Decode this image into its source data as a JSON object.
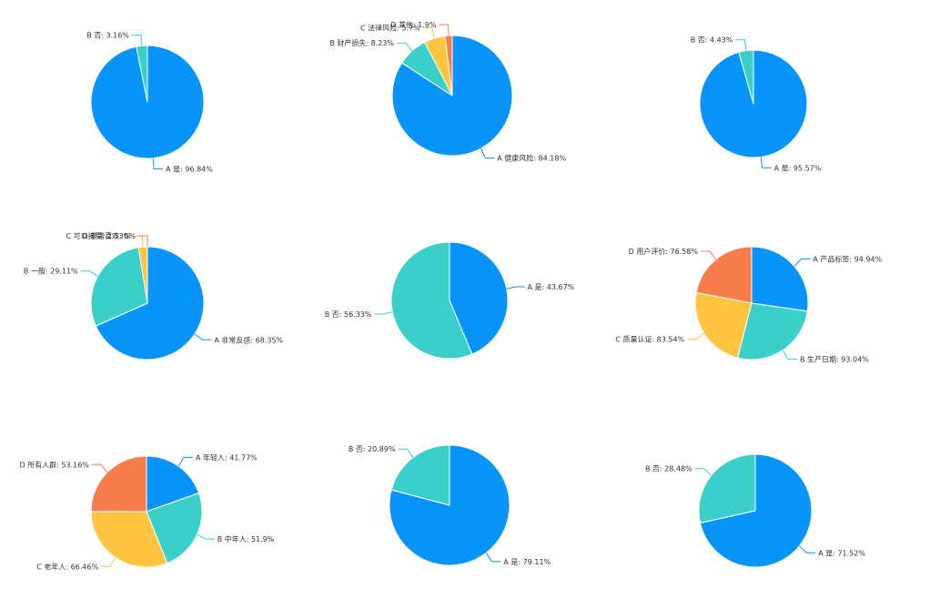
{
  "colors": [
    "#0894fb",
    "#3acfc8",
    "#ffc541",
    "#f97d4c"
  ],
  "chart_data": [
    {
      "type": "pie",
      "slices": [
        {
          "label": "A 是",
          "value": 96.84
        },
        {
          "label": "B 否",
          "value": 3.16
        }
      ]
    },
    {
      "type": "pie",
      "slices": [
        {
          "label": "A 健康风险",
          "value": 84.18
        },
        {
          "label": "B 财产损失",
          "value": 8.23
        },
        {
          "label": "C 法律风险",
          "value": 5.7
        },
        {
          "label": "D 其他",
          "value": 1.9
        }
      ]
    },
    {
      "type": "pie",
      "slices": [
        {
          "label": "A 是",
          "value": 95.57
        },
        {
          "label": "B 否",
          "value": 4.43
        }
      ]
    },
    {
      "type": "pie",
      "slices": [
        {
          "label": "A 非常反感",
          "value": 68.35
        },
        {
          "label": "B 一般",
          "value": 29.11
        },
        {
          "label": "C 可以接受",
          "value": 2.53
        },
        {
          "label": "D 非常喜欢",
          "value": 0
        }
      ]
    },
    {
      "type": "pie",
      "slices": [
        {
          "label": "A 是",
          "value": 43.67
        },
        {
          "label": "B 否",
          "value": 56.33
        }
      ]
    },
    {
      "type": "pie",
      "slices": [
        {
          "label": "A 产品标签",
          "value": 94.94
        },
        {
          "label": "B 生产日期",
          "value": 93.04
        },
        {
          "label": "C 质量认证",
          "value": 83.54
        },
        {
          "label": "D 用户评价",
          "value": 76.58
        }
      ]
    },
    {
      "type": "pie",
      "slices": [
        {
          "label": "A 年轻人",
          "value": 41.77
        },
        {
          "label": "B 中年人",
          "value": 51.9
        },
        {
          "label": "C 老年人",
          "value": 66.46
        },
        {
          "label": "D 所有人群",
          "value": 53.16
        }
      ]
    },
    {
      "type": "pie",
      "slices": [
        {
          "label": "A 是",
          "value": 79.11
        },
        {
          "label": "B 否",
          "value": 20.89
        }
      ]
    },
    {
      "type": "pie",
      "slices": [
        {
          "label": "A 是",
          "value": 71.52
        },
        {
          "label": "B 否",
          "value": 28.48
        }
      ]
    }
  ]
}
